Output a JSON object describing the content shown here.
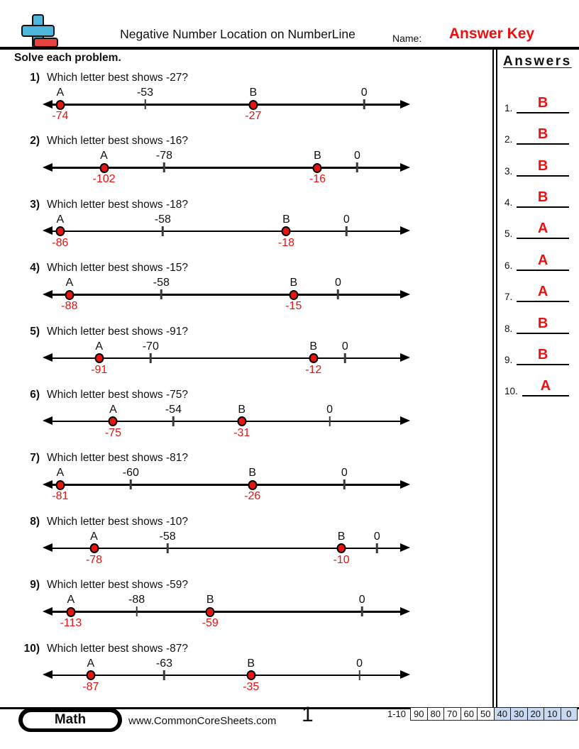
{
  "header": {
    "title": "Negative Number Location on NumberLine",
    "name_label": "Name:",
    "name_value": "Answer Key",
    "logo": {
      "plus_color": "#4cb6dd",
      "minus_color": "#e8433f"
    }
  },
  "instructions": "Solve each problem.",
  "answers_panel": {
    "title": "Answers",
    "items": [
      {
        "num": "1.",
        "answer": "B"
      },
      {
        "num": "2.",
        "answer": "B"
      },
      {
        "num": "3.",
        "answer": "B"
      },
      {
        "num": "4.",
        "answer": "B"
      },
      {
        "num": "5.",
        "answer": "A"
      },
      {
        "num": "6.",
        "answer": "A"
      },
      {
        "num": "7.",
        "answer": "A"
      },
      {
        "num": "8.",
        "answer": "B"
      },
      {
        "num": "9.",
        "answer": "B"
      },
      {
        "num": "10.",
        "answer": "A"
      }
    ]
  },
  "problems": [
    {
      "num": "1)",
      "question": "Which letter best shows -27?",
      "points": [
        {
          "type": "dot",
          "top": "A",
          "bottom": "-74",
          "pos": 4.8
        },
        {
          "type": "tick",
          "top": "-53",
          "pos": 27.9
        },
        {
          "type": "dot",
          "top": "B",
          "bottom": "-27",
          "pos": 57.3
        },
        {
          "type": "tick",
          "top": "0",
          "pos": 87.5
        }
      ]
    },
    {
      "num": "2)",
      "question": "Which letter best shows -16?",
      "points": [
        {
          "type": "dot",
          "top": "A",
          "bottom": "-102",
          "pos": 16.7
        },
        {
          "type": "tick",
          "top": "-78",
          "pos": 33.1
        },
        {
          "type": "dot",
          "top": "B",
          "bottom": "-16",
          "pos": 74.8
        },
        {
          "type": "tick",
          "top": "0",
          "pos": 85.6
        }
      ]
    },
    {
      "num": "3)",
      "question": "Which letter best shows -18?",
      "points": [
        {
          "type": "dot",
          "top": "A",
          "bottom": "-86",
          "pos": 4.8
        },
        {
          "type": "tick",
          "top": "-58",
          "pos": 32.7
        },
        {
          "type": "dot",
          "top": "B",
          "bottom": "-18",
          "pos": 66.3
        },
        {
          "type": "tick",
          "top": "0",
          "pos": 82.7
        }
      ]
    },
    {
      "num": "4)",
      "question": "Which letter best shows -15?",
      "points": [
        {
          "type": "dot",
          "top": "A",
          "bottom": "-88",
          "pos": 7.3
        },
        {
          "type": "tick",
          "top": "-58",
          "pos": 32.3
        },
        {
          "type": "dot",
          "top": "B",
          "bottom": "-15",
          "pos": 68.3
        },
        {
          "type": "tick",
          "top": "0",
          "pos": 80.4
        }
      ]
    },
    {
      "num": "5)",
      "question": "Which letter best shows -91?",
      "points": [
        {
          "type": "dot",
          "top": "A",
          "bottom": "-91",
          "pos": 15.4
        },
        {
          "type": "tick",
          "top": "-70",
          "pos": 29.4
        },
        {
          "type": "dot",
          "top": "B",
          "bottom": "-12",
          "pos": 73.7
        },
        {
          "type": "tick",
          "top": "0",
          "pos": 82.3
        }
      ]
    },
    {
      "num": "6)",
      "question": "Which letter best shows -75?",
      "points": [
        {
          "type": "dot",
          "top": "A",
          "bottom": "-75",
          "pos": 19.2
        },
        {
          "type": "tick",
          "top": "-54",
          "pos": 35.6
        },
        {
          "type": "dot",
          "top": "B",
          "bottom": "-31",
          "pos": 54.2
        },
        {
          "type": "tick",
          "top": "0",
          "pos": 78.1
        }
      ]
    },
    {
      "num": "7)",
      "question": "Which letter best shows -81?",
      "points": [
        {
          "type": "dot",
          "top": "A",
          "bottom": "-81",
          "pos": 4.8
        },
        {
          "type": "tick",
          "top": "-60",
          "pos": 24.0
        },
        {
          "type": "dot",
          "top": "B",
          "bottom": "-26",
          "pos": 57.1
        },
        {
          "type": "tick",
          "top": "0",
          "pos": 82.1
        }
      ]
    },
    {
      "num": "8)",
      "question": "Which letter best shows -10?",
      "points": [
        {
          "type": "dot",
          "top": "A",
          "bottom": "-78",
          "pos": 14.0
        },
        {
          "type": "tick",
          "top": "-58",
          "pos": 34.0
        },
        {
          "type": "dot",
          "top": "B",
          "bottom": "-10",
          "pos": 81.3
        },
        {
          "type": "tick",
          "top": "0",
          "pos": 91.0
        }
      ]
    },
    {
      "num": "9)",
      "question": "Which letter best shows -59?",
      "points": [
        {
          "type": "dot",
          "top": "A",
          "bottom": "-113",
          "pos": 7.7
        },
        {
          "type": "tick",
          "top": "-88",
          "pos": 25.6
        },
        {
          "type": "dot",
          "top": "B",
          "bottom": "-59",
          "pos": 45.6
        },
        {
          "type": "tick",
          "top": "0",
          "pos": 86.9
        }
      ]
    },
    {
      "num": "10)",
      "question": "Which letter best shows -87?",
      "points": [
        {
          "type": "dot",
          "top": "A",
          "bottom": "-87",
          "pos": 13.1
        },
        {
          "type": "tick",
          "top": "-63",
          "pos": 33.1
        },
        {
          "type": "dot",
          "top": "B",
          "bottom": "-35",
          "pos": 56.7
        },
        {
          "type": "tick",
          "top": "0",
          "pos": 86.2
        }
      ]
    }
  ],
  "footer": {
    "subject": "Math",
    "website": "www.CommonCoreSheets.com",
    "page_number": "1",
    "score_label": "1-10",
    "score_cells": [
      {
        "label": "90",
        "highlight": false
      },
      {
        "label": "80",
        "highlight": false
      },
      {
        "label": "70",
        "highlight": false
      },
      {
        "label": "60",
        "highlight": false
      },
      {
        "label": "50",
        "highlight": false
      },
      {
        "label": "40",
        "highlight": true
      },
      {
        "label": "30",
        "highlight": true
      },
      {
        "label": "20",
        "highlight": true
      },
      {
        "label": "10",
        "highlight": true
      },
      {
        "label": "0",
        "highlight": true
      }
    ]
  },
  "colors": {
    "accent_red": "#ee1010",
    "dot_red": "#e8140f",
    "logo_blue": "#4cb6dd",
    "logo_red": "#e8433f",
    "score_highlight": "#c9d9f1"
  }
}
